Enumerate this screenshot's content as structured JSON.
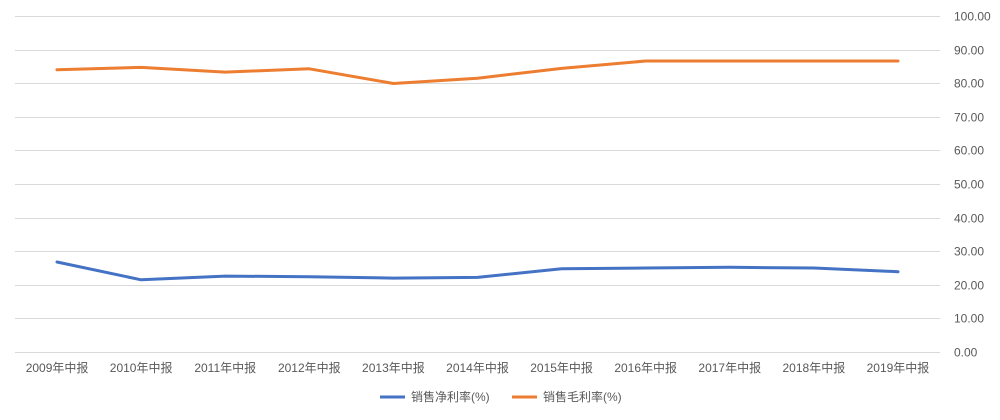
{
  "chart_data": {
    "type": "line",
    "title": "",
    "xlabel": "",
    "ylabel": "",
    "categories": [
      "2009年中报",
      "2010年中报",
      "2011年中报",
      "2012年中报",
      "2013年中报",
      "2014年中报",
      "2015年中报",
      "2016年中报",
      "2017年中报",
      "2018年中报",
      "2019年中报"
    ],
    "ylim": [
      0,
      100
    ],
    "yticks": [
      "0.00",
      "10.00",
      "20.00",
      "30.00",
      "40.00",
      "50.00",
      "60.00",
      "70.00",
      "80.00",
      "90.00",
      "100.00"
    ],
    "y_axis_position": "right",
    "grid": true,
    "legend_position": "bottom",
    "series": [
      {
        "name": "销售净利率(%)",
        "color": "#4472c4",
        "values": [
          26.8,
          21.5,
          22.6,
          22.4,
          22.0,
          22.2,
          24.8,
          25.0,
          25.2,
          25.0,
          23.9
        ]
      },
      {
        "name": "销售毛利率(%)",
        "color": "#ed7d31",
        "values": [
          84.0,
          84.7,
          83.3,
          84.3,
          79.9,
          81.5,
          84.4,
          86.6,
          86.6,
          86.6,
          86.6
        ]
      }
    ]
  }
}
